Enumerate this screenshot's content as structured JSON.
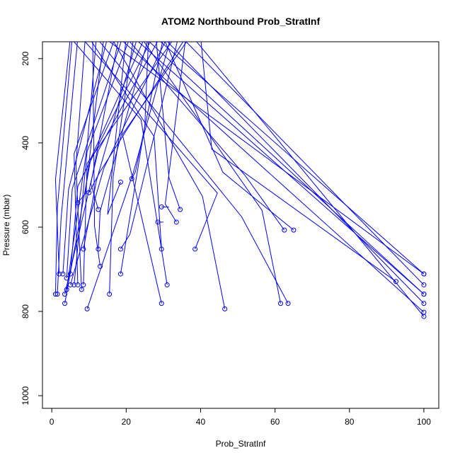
{
  "chart_data": {
    "type": "line",
    "title": "ATOM2 Northbound Prob_StratInf",
    "xlabel": "Prob_StratInf",
    "ylabel": "Pressure (mbar)",
    "xlim": [
      -2.5,
      104
    ],
    "ylim": [
      1030,
      160
    ],
    "y_reversed": true,
    "x_ticks": [
      "0",
      "20",
      "40",
      "60",
      "80",
      "100"
    ],
    "y_ticks": [
      "200",
      "400",
      "600",
      "800",
      "1000"
    ],
    "series_color": "#0000ff",
    "marker": "open-circle",
    "series": [
      {
        "x": [
          100,
          28
        ],
        "y": [
          711,
          150
        ]
      },
      {
        "x": [
          100,
          35
        ],
        "y": [
          737,
          150
        ]
      },
      {
        "x": [
          100,
          22
        ],
        "y": [
          759,
          150
        ]
      },
      {
        "x": [
          100,
          30
        ],
        "y": [
          781,
          150
        ]
      },
      {
        "x": [
          100,
          18
        ],
        "y": [
          802,
          150
        ]
      },
      {
        "x": [
          100,
          38
        ],
        "y": [
          812,
          150
        ]
      },
      {
        "x": [
          100,
          14
        ],
        "y": [
          711,
          150
        ]
      },
      {
        "x": [
          100,
          25
        ],
        "y": [
          759,
          150
        ]
      },
      {
        "x": [
          92.5,
          43,
          40
        ],
        "y": [
          729,
          415,
          150
        ]
      },
      {
        "x": [
          65,
          46,
          30
        ],
        "y": [
          607,
          470,
          150
        ]
      },
      {
        "x": [
          62.5,
          52,
          20
        ],
        "y": [
          607,
          478,
          150
        ]
      },
      {
        "x": [
          63.5,
          51,
          12
        ],
        "y": [
          781,
          575,
          150
        ]
      },
      {
        "x": [
          61.5,
          56.5,
          24
        ],
        "y": [
          781,
          560,
          150
        ]
      },
      {
        "x": [
          46.5,
          40.5,
          16
        ],
        "y": [
          794,
          527,
          150
        ]
      },
      {
        "x": [
          38.5,
          44.5,
          8
        ],
        "y": [
          652,
          519,
          150
        ]
      },
      {
        "x": [
          34.5,
          31.5,
          28
        ],
        "y": [
          558,
          483,
          150
        ]
      },
      {
        "x": [
          33.5,
          30.5,
          36
        ],
        "y": [
          588,
          545,
          150
        ]
      },
      {
        "x": [
          31,
          24,
          5
        ],
        "y": [
          737,
          345,
          150
        ]
      },
      {
        "x": [
          29.5,
          27.5,
          10
        ],
        "y": [
          652,
          385,
          150
        ]
      },
      {
        "x": [
          29.5,
          19,
          37
        ],
        "y": [
          781,
          380,
          150
        ]
      },
      {
        "x": [
          18.5,
          25,
          26
        ],
        "y": [
          711,
          360,
          150
        ]
      },
      {
        "x": [
          15.5,
          16.5,
          22
        ],
        "y": [
          759,
          480,
          150
        ]
      },
      {
        "x": [
          9.5,
          22,
          32
        ],
        "y": [
          794,
          468,
          150
        ]
      },
      {
        "x": [
          3.5,
          10.5,
          25
        ],
        "y": [
          781,
          437,
          150
        ]
      },
      {
        "x": [
          3.5,
          12.5,
          29
        ],
        "y": [
          759,
          418,
          150
        ]
      },
      {
        "x": [
          4,
          9.5,
          12
        ],
        "y": [
          748,
          409,
          150
        ]
      },
      {
        "x": [
          5,
          14,
          31
        ],
        "y": [
          737,
          460,
          150
        ]
      },
      {
        "x": [
          6,
          9.5,
          21
        ],
        "y": [
          737,
          420,
          150
        ]
      },
      {
        "x": [
          7,
          6,
          17
        ],
        "y": [
          737,
          426,
          150
        ]
      },
      {
        "x": [
          8,
          6.5,
          9
        ],
        "y": [
          748,
          452,
          150
        ]
      },
      {
        "x": [
          8.5,
          9.5,
          33
        ],
        "y": [
          737,
          449,
          150
        ]
      },
      {
        "x": [
          3,
          4.5,
          15
        ],
        "y": [
          711,
          511,
          150
        ]
      },
      {
        "x": [
          4,
          5.5,
          19
        ],
        "y": [
          721,
          509,
          150
        ]
      },
      {
        "x": [
          5,
          7,
          27
        ],
        "y": [
          711,
          503,
          150
        ]
      },
      {
        "x": [
          1,
          1.5,
          5.5
        ],
        "y": [
          759,
          555,
          150
        ]
      },
      {
        "x": [
          1.5,
          2.5,
          7
        ],
        "y": [
          759,
          580,
          150
        ]
      },
      {
        "x": [
          2,
          1,
          5
        ],
        "y": [
          711,
          487,
          150
        ]
      },
      {
        "x": [
          8.5,
          12,
          23
        ],
        "y": [
          652,
          490,
          150
        ]
      },
      {
        "x": [
          12.5,
          13,
          26
        ],
        "y": [
          652,
          562,
          150
        ]
      },
      {
        "x": [
          13,
          11.5,
          11
        ],
        "y": [
          693,
          598,
          150
        ]
      },
      {
        "x": [
          18.5,
          21,
          34
        ],
        "y": [
          652,
          617,
          150
        ]
      },
      {
        "x": [
          12.5,
          10.5,
          18
        ],
        "y": [
          558,
          497,
          150
        ]
      },
      {
        "x": [
          7,
          9,
          14
        ],
        "y": [
          542,
          521,
          150
        ]
      },
      {
        "x": [
          10,
          13,
          36
        ],
        "y": [
          518,
          468,
          150
        ]
      },
      {
        "x": [
          21.5,
          22.5,
          30
        ],
        "y": [
          485,
          468,
          150
        ]
      },
      {
        "x": [
          18.5,
          15,
          20
        ],
        "y": [
          493,
          570,
          150
        ]
      },
      {
        "x": [
          28.5,
          30
        ],
        "y": [
          588,
          588
        ]
      },
      {
        "x": [
          29.5,
          31.5
        ],
        "y": [
          552,
          552
        ]
      }
    ]
  }
}
